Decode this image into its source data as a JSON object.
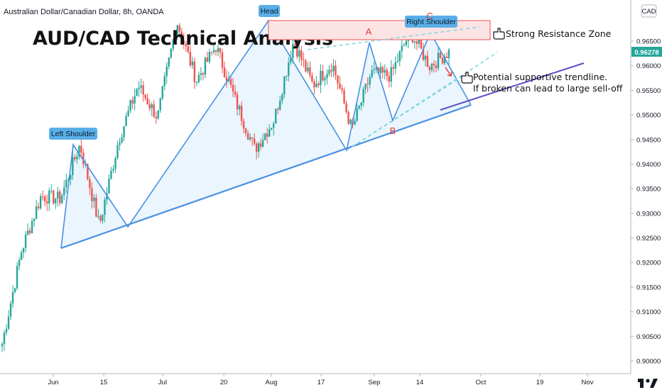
{
  "header": {
    "symbol_line": "Australian Dollar/Canadian Dollar, 8h, OANDA"
  },
  "title": "AUD/CAD Technical Analysis",
  "currency_badge": "CAD",
  "colors": {
    "up": "#26a69a",
    "down": "#ef5350",
    "pattern": "#4a90e2",
    "trend": "#5b4fc4",
    "zone": "#ef5350",
    "price_tag": "#26a69a"
  },
  "icons": {
    "pointer": "pointing-hand-icon",
    "logo": "tradingview-logo-icon"
  },
  "annotations": {
    "left_shoulder": "Left Shoulder",
    "head": "Head",
    "right_shoulder": "Right Shoulder",
    "point_a": "A",
    "point_b": "B",
    "point_c": "C",
    "resistance": "Strong Resistance Zone",
    "support_line1": "Potential supportive trendline.",
    "support_line2": "If broken can lead to large sell-off"
  },
  "chart_data": {
    "type": "candlestick",
    "x_ticks": [
      "Jun",
      "15",
      "Jul",
      "20",
      "Aug",
      "17",
      "Sep",
      "14",
      "Oct",
      "19",
      "Nov"
    ],
    "y_ticks": [
      "0.96500",
      "0.96000",
      "0.95500",
      "0.95000",
      "0.94500",
      "0.94000",
      "0.93500",
      "0.93000",
      "0.92500",
      "0.92000",
      "0.91500",
      "0.91000",
      "0.90500",
      "0.90000"
    ],
    "y_range": [
      0.899,
      0.97
    ],
    "last_price": "0.96278",
    "pivots": [
      0.9035,
      0.9225,
      0.9335,
      0.933,
      0.944,
      0.9275,
      0.945,
      0.956,
      0.9495,
      0.969,
      0.957,
      0.964,
      0.953,
      0.943,
      0.949,
      0.965,
      0.956,
      0.9605,
      0.947,
      0.9585,
      0.958,
      0.967,
      0.96,
      0.9628
    ],
    "resistance_zone": [
      0.965,
      0.969
    ],
    "pattern": {
      "left_shoulder": 0.944,
      "head": 0.969,
      "right_shoulder": 0.967,
      "neckline_lows": [
        0.9275,
        0.943
      ]
    }
  }
}
